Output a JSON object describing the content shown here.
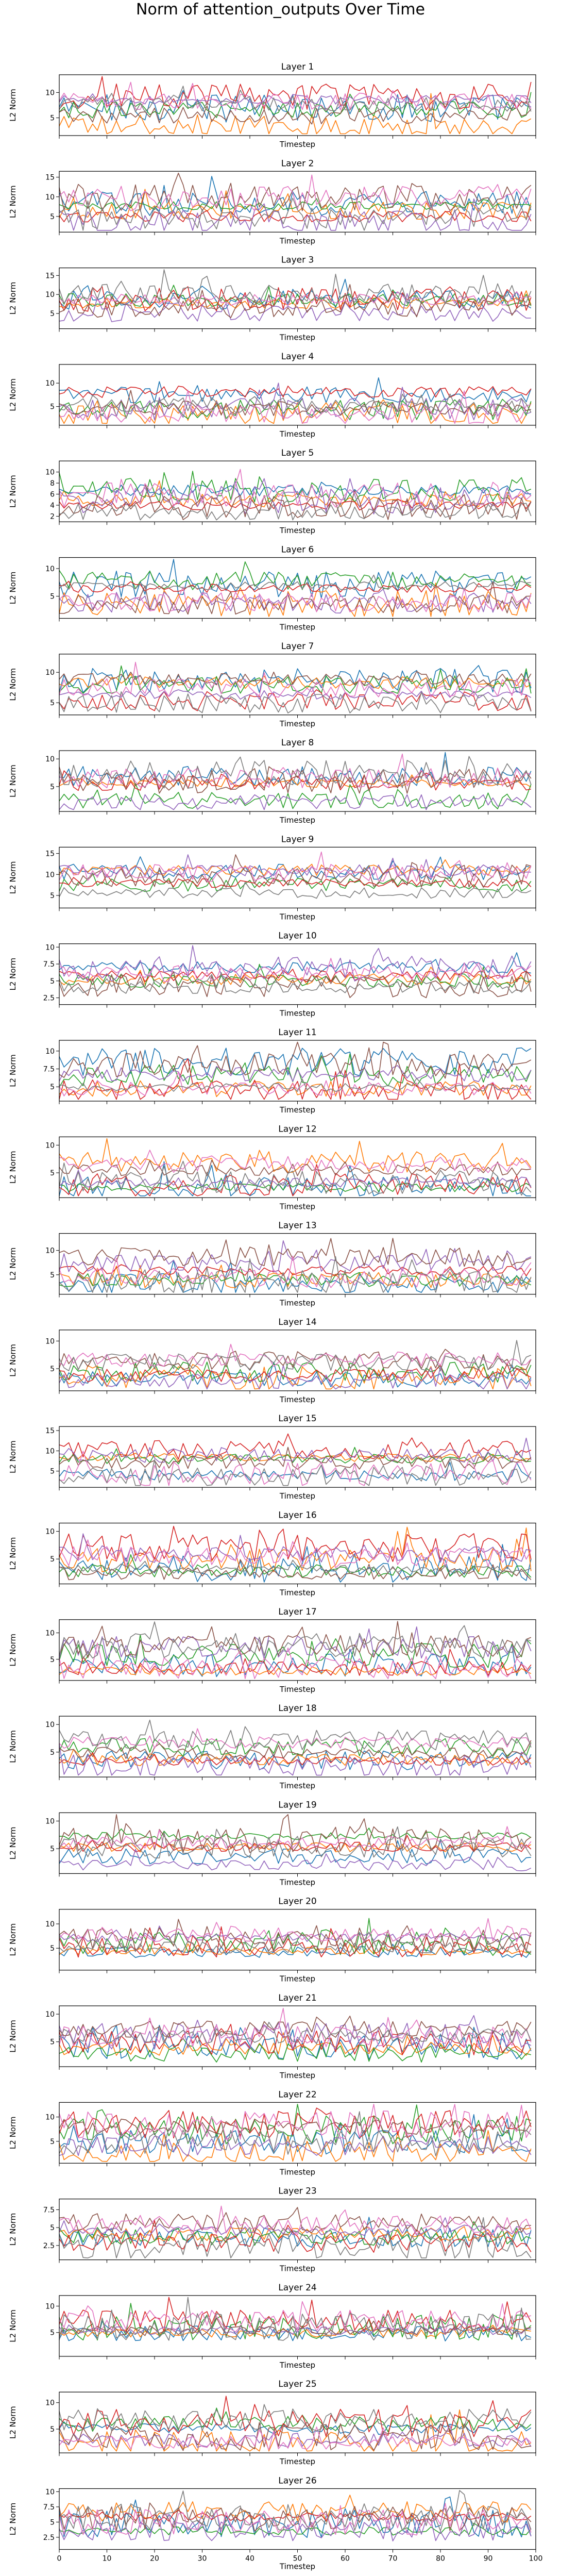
{
  "figure": {
    "suptitle": "Norm of attention_outputs Over Time"
  },
  "colors": [
    "#1f77b4",
    "#ff7f0e",
    "#2ca02c",
    "#d62728",
    "#9467bd",
    "#8c564b",
    "#e377c2",
    "#7f7f7f"
  ],
  "chart_data": [
    {
      "type": "line",
      "title": "Layer 1",
      "xlabel": "Timestep",
      "ylabel": "L2 Norm",
      "xlim": [
        0,
        100
      ],
      "ylim": [
        1.5,
        13.5
      ],
      "yticks": [
        5,
        10
      ],
      "x_range": [
        0,
        99
      ],
      "series_count": 8,
      "grid": false,
      "legend": "none"
    },
    {
      "type": "line",
      "title": "Layer 2",
      "xlabel": "Timestep",
      "ylabel": "L2 Norm",
      "xlim": [
        0,
        100
      ],
      "ylim": [
        1,
        16.5
      ],
      "yticks": [
        5,
        10,
        15
      ],
      "x_range": [
        0,
        99
      ],
      "series_count": 8,
      "grid": false,
      "legend": "none"
    },
    {
      "type": "line",
      "title": "Layer 3",
      "xlabel": "Timestep",
      "ylabel": "L2 Norm",
      "xlim": [
        0,
        100
      ],
      "ylim": [
        1,
        17
      ],
      "yticks": [
        5,
        10,
        15
      ],
      "x_range": [
        0,
        99
      ],
      "series_count": 8,
      "grid": false,
      "legend": "none"
    },
    {
      "type": "line",
      "title": "Layer 4",
      "xlabel": "Timestep",
      "ylabel": "L2 Norm",
      "xlim": [
        0,
        100
      ],
      "ylim": [
        1,
        14
      ],
      "yticks": [
        5,
        10
      ],
      "x_range": [
        0,
        99
      ],
      "series_count": 8,
      "grid": false,
      "legend": "none"
    },
    {
      "type": "line",
      "title": "Layer 5",
      "xlabel": "Timestep",
      "ylabel": "L2 Norm",
      "xlim": [
        0,
        100
      ],
      "ylim": [
        1,
        12
      ],
      "yticks": [
        2,
        4,
        6,
        8,
        10
      ],
      "x_range": [
        0,
        99
      ],
      "series_count": 8,
      "grid": false,
      "legend": "none"
    },
    {
      "type": "line",
      "title": "Layer 6",
      "xlabel": "Timestep",
      "ylabel": "L2 Norm",
      "xlim": [
        0,
        100
      ],
      "ylim": [
        1,
        12
      ],
      "yticks": [
        5,
        10
      ],
      "x_range": [
        0,
        99
      ],
      "series_count": 8,
      "grid": false,
      "legend": "none"
    },
    {
      "type": "line",
      "title": "Layer 7",
      "xlabel": "Timestep",
      "ylabel": "L2 Norm",
      "xlim": [
        0,
        100
      ],
      "ylim": [
        3,
        13
      ],
      "yticks": [
        5,
        10
      ],
      "x_range": [
        0,
        99
      ],
      "series_count": 8,
      "grid": false,
      "legend": "none"
    },
    {
      "type": "line",
      "title": "Layer 8",
      "xlabel": "Timestep",
      "ylabel": "L2 Norm",
      "xlim": [
        0,
        100
      ],
      "ylim": [
        0.5,
        11.5
      ],
      "yticks": [
        5,
        10
      ],
      "x_range": [
        0,
        99
      ],
      "series_count": 8,
      "grid": false,
      "legend": "none"
    },
    {
      "type": "line",
      "title": "Layer 9",
      "xlabel": "Timestep",
      "ylabel": "L2 Norm",
      "xlim": [
        0,
        100
      ],
      "ylim": [
        2,
        16.5
      ],
      "yticks": [
        5,
        10,
        15
      ],
      "x_range": [
        0,
        99
      ],
      "series_count": 8,
      "grid": false,
      "legend": "none"
    },
    {
      "type": "line",
      "title": "Layer 10",
      "xlabel": "Timestep",
      "ylabel": "L2 Norm",
      "xlim": [
        0,
        100
      ],
      "ylim": [
        1.5,
        10.5
      ],
      "yticks": [
        2.5,
        5.0,
        7.5,
        10.0
      ],
      "x_range": [
        0,
        99
      ],
      "series_count": 8,
      "grid": false,
      "legend": "none"
    },
    {
      "type": "line",
      "title": "Layer 11",
      "xlabel": "Timestep",
      "ylabel": "L2 Norm",
      "xlim": [
        0,
        100
      ],
      "ylim": [
        3,
        11.5
      ],
      "yticks": [
        5.0,
        7.5,
        10.0
      ],
      "x_range": [
        0,
        99
      ],
      "series_count": 8,
      "grid": false,
      "legend": "none"
    },
    {
      "type": "line",
      "title": "Layer 12",
      "xlabel": "Timestep",
      "ylabel": "L2 Norm",
      "xlim": [
        0,
        100
      ],
      "ylim": [
        0.5,
        11.5
      ],
      "yticks": [
        5,
        10
      ],
      "x_range": [
        0,
        99
      ],
      "series_count": 8,
      "grid": false,
      "legend": "none"
    },
    {
      "type": "line",
      "title": "Layer 13",
      "xlabel": "Timestep",
      "ylabel": "L2 Norm",
      "xlim": [
        0,
        100
      ],
      "ylim": [
        1,
        13.5
      ],
      "yticks": [
        5,
        10
      ],
      "x_range": [
        0,
        99
      ],
      "series_count": 8,
      "grid": false,
      "legend": "none"
    },
    {
      "type": "line",
      "title": "Layer 14",
      "xlabel": "Timestep",
      "ylabel": "L2 Norm",
      "xlim": [
        0,
        100
      ],
      "ylim": [
        1,
        12
      ],
      "yticks": [
        5,
        10
      ],
      "x_range": [
        0,
        99
      ],
      "series_count": 8,
      "grid": false,
      "legend": "none"
    },
    {
      "type": "line",
      "title": "Layer 15",
      "xlabel": "Timestep",
      "ylabel": "L2 Norm",
      "xlim": [
        0,
        100
      ],
      "ylim": [
        1,
        16
      ],
      "yticks": [
        5,
        10,
        15
      ],
      "x_range": [
        0,
        99
      ],
      "series_count": 8,
      "grid": false,
      "legend": "none"
    },
    {
      "type": "line",
      "title": "Layer 16",
      "xlabel": "Timestep",
      "ylabel": "L2 Norm",
      "xlim": [
        0,
        100
      ],
      "ylim": [
        0.5,
        11.5
      ],
      "yticks": [
        5,
        10
      ],
      "x_range": [
        0,
        99
      ],
      "series_count": 8,
      "grid": false,
      "legend": "none"
    },
    {
      "type": "line",
      "title": "Layer 17",
      "xlabel": "Timestep",
      "ylabel": "L2 Norm",
      "xlim": [
        0,
        100
      ],
      "ylim": [
        1,
        12.5
      ],
      "yticks": [
        5,
        10
      ],
      "x_range": [
        0,
        99
      ],
      "series_count": 8,
      "grid": false,
      "legend": "none"
    },
    {
      "type": "line",
      "title": "Layer 18",
      "xlabel": "Timestep",
      "ylabel": "L2 Norm",
      "xlim": [
        0,
        100
      ],
      "ylim": [
        0.5,
        11.5
      ],
      "yticks": [
        5,
        10
      ],
      "x_range": [
        0,
        99
      ],
      "series_count": 8,
      "grid": false,
      "legend": "none"
    },
    {
      "type": "line",
      "title": "Layer 19",
      "xlabel": "Timestep",
      "ylabel": "L2 Norm",
      "xlim": [
        0,
        100
      ],
      "ylim": [
        0.5,
        11.5
      ],
      "yticks": [
        5,
        10
      ],
      "x_range": [
        0,
        99
      ],
      "series_count": 8,
      "grid": false,
      "legend": "none"
    },
    {
      "type": "line",
      "title": "Layer 20",
      "xlabel": "Timestep",
      "ylabel": "L2 Norm",
      "xlim": [
        0,
        100
      ],
      "ylim": [
        0.5,
        13
      ],
      "yticks": [
        5,
        10
      ],
      "x_range": [
        0,
        99
      ],
      "series_count": 8,
      "grid": false,
      "legend": "none"
    },
    {
      "type": "line",
      "title": "Layer 21",
      "xlabel": "Timestep",
      "ylabel": "L2 Norm",
      "xlim": [
        0,
        100
      ],
      "ylim": [
        0.5,
        11.5
      ],
      "yticks": [
        5,
        10
      ],
      "x_range": [
        0,
        99
      ],
      "series_count": 8,
      "grid": false,
      "legend": "none"
    },
    {
      "type": "line",
      "title": "Layer 22",
      "xlabel": "Timestep",
      "ylabel": "L2 Norm",
      "xlim": [
        0,
        100
      ],
      "ylim": [
        0.5,
        13
      ],
      "yticks": [
        5,
        10
      ],
      "x_range": [
        0,
        99
      ],
      "series_count": 8,
      "grid": false,
      "legend": "none"
    },
    {
      "type": "line",
      "title": "Layer 23",
      "xlabel": "Timestep",
      "ylabel": "L2 Norm",
      "xlim": [
        0,
        100
      ],
      "ylim": [
        0.5,
        9
      ],
      "yticks": [
        2.5,
        5.0,
        7.5
      ],
      "x_range": [
        0,
        99
      ],
      "series_count": 8,
      "grid": false,
      "legend": "none"
    },
    {
      "type": "line",
      "title": "Layer 24",
      "xlabel": "Timestep",
      "ylabel": "L2 Norm",
      "xlim": [
        0,
        100
      ],
      "ylim": [
        0.5,
        12
      ],
      "yticks": [
        5,
        10
      ],
      "x_range": [
        0,
        99
      ],
      "series_count": 8,
      "grid": false,
      "legend": "none"
    },
    {
      "type": "line",
      "title": "Layer 25",
      "xlabel": "Timestep",
      "ylabel": "L2 Norm",
      "xlim": [
        0,
        100
      ],
      "ylim": [
        0.5,
        12
      ],
      "yticks": [
        5,
        10
      ],
      "x_range": [
        0,
        99
      ],
      "series_count": 8,
      "grid": false,
      "legend": "none"
    },
    {
      "type": "line",
      "title": "Layer 26",
      "xlabel": "Timestep",
      "ylabel": "L2 Norm",
      "xlim": [
        0,
        100
      ],
      "ylim": [
        0.5,
        10.5
      ],
      "yticks": [
        2.5,
        5.0,
        7.5,
        10.0
      ],
      "xticks": [
        0,
        10,
        20,
        30,
        40,
        50,
        60,
        70,
        80,
        90,
        100
      ],
      "x_range": [
        0,
        99
      ],
      "series_count": 8,
      "grid": false,
      "legend": "none"
    }
  ]
}
